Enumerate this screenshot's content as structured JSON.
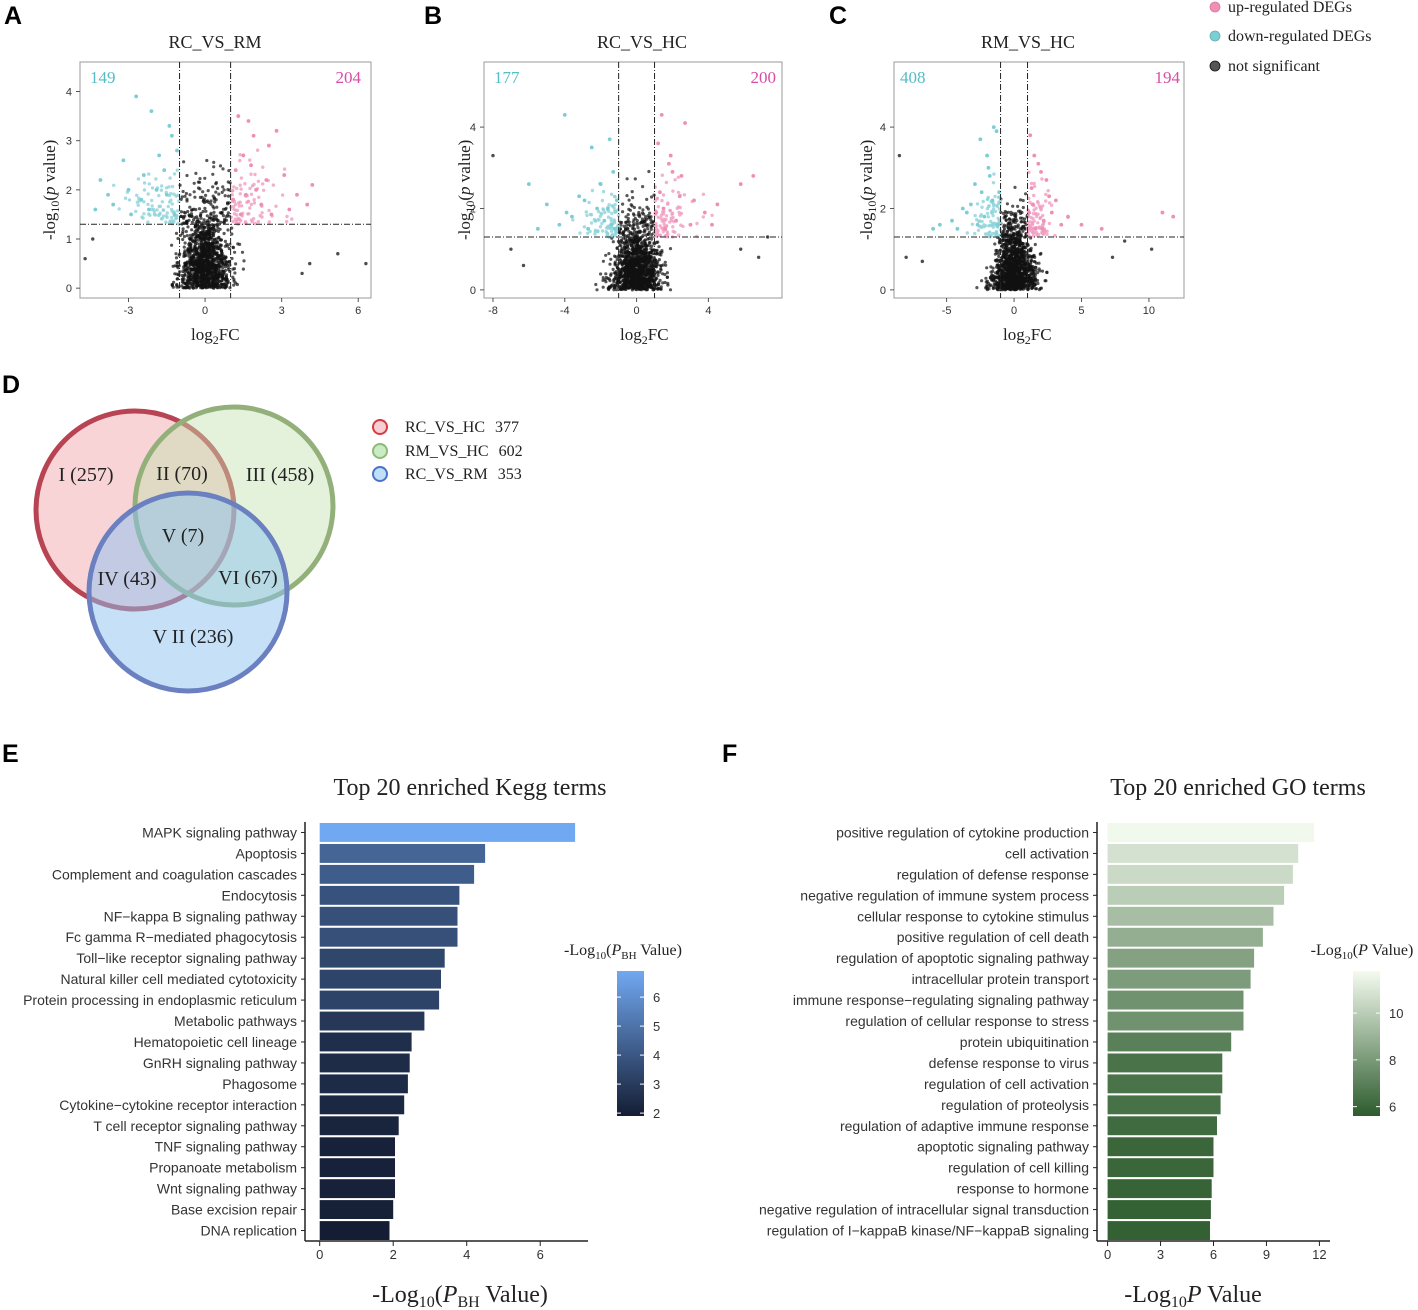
{
  "chart_data": [
    {
      "id": "A",
      "type": "scatter",
      "panel_label": "A",
      "title": "RC_VS_RM",
      "xlabel": "log2FC",
      "ylabel": "-log10(p value)",
      "xlim": [
        -4.9,
        6.5
      ],
      "ylim": [
        -0.2,
        4.6
      ],
      "xticks": [
        -3,
        0,
        3,
        6
      ],
      "yticks": [
        0,
        1,
        2,
        3,
        4
      ],
      "fc_threshold": 1,
      "p_threshold": 1.3,
      "down_count": "149",
      "up_count": "204",
      "up_points": [
        [
          1.3,
          3.5
        ],
        [
          1.9,
          3.1
        ],
        [
          2.5,
          2.9
        ],
        [
          3.1,
          2.3
        ],
        [
          1.6,
          1.9
        ],
        [
          2.2,
          1.7
        ],
        [
          3.6,
          1.9
        ],
        [
          4.2,
          2.1
        ],
        [
          1.2,
          2.4
        ],
        [
          1.5,
          2.7
        ],
        [
          2.8,
          3.2
        ],
        [
          1.4,
          1.5
        ],
        [
          2.0,
          2.0
        ],
        [
          3.3,
          1.6
        ],
        [
          1.8,
          2.5
        ],
        [
          2.4,
          2.2
        ],
        [
          1.1,
          1.8
        ],
        [
          4.0,
          1.7
        ],
        [
          1.7,
          3.4
        ],
        [
          2.6,
          1.5
        ]
      ],
      "down_points": [
        [
          -1.3,
          3.1
        ],
        [
          -1.8,
          2.7
        ],
        [
          -2.4,
          2.3
        ],
        [
          -3.0,
          2.0
        ],
        [
          -3.6,
          1.7
        ],
        [
          -1.5,
          1.9
        ],
        [
          -2.1,
          3.6
        ],
        [
          -2.7,
          3.9
        ],
        [
          -1.2,
          1.5
        ],
        [
          -4.1,
          2.2
        ],
        [
          -1.6,
          2.4
        ],
        [
          -2.2,
          1.6
        ],
        [
          -3.2,
          2.6
        ],
        [
          -1.4,
          3.3
        ],
        [
          -2.9,
          1.5
        ],
        [
          -1.9,
          2.0
        ],
        [
          -3.8,
          1.9
        ],
        [
          -1.1,
          2.8
        ],
        [
          -2.5,
          1.8
        ],
        [
          -4.3,
          1.6
        ]
      ],
      "ns_sigma": [
        0.55,
        0.85
      ],
      "ns_outliers": [
        [
          6.3,
          0.5
        ],
        [
          -4.7,
          0.6
        ],
        [
          4.1,
          0.5
        ],
        [
          -4.4,
          1.0
        ],
        [
          5.2,
          0.7
        ],
        [
          3.8,
          0.3
        ]
      ]
    },
    {
      "id": "B",
      "type": "scatter",
      "panel_label": "B",
      "title": "RC_VS_HC",
      "xlabel": "log2FC",
      "ylabel": "-log10(p value)",
      "xlim": [
        -8.5,
        8.1
      ],
      "ylim": [
        -0.2,
        5.6
      ],
      "xticks": [
        -8,
        -4,
        0,
        4
      ],
      "yticks": [
        0,
        2,
        4
      ],
      "fc_threshold": 1,
      "p_threshold": 1.3,
      "down_count": "177",
      "up_count": "200",
      "up_points": [
        [
          1.2,
          3.6
        ],
        [
          1.8,
          3.1
        ],
        [
          2.5,
          2.8
        ],
        [
          3.2,
          2.2
        ],
        [
          4.5,
          2.1
        ],
        [
          5.8,
          2.6
        ],
        [
          1.5,
          2.0
        ],
        [
          2.2,
          1.7
        ],
        [
          1.3,
          2.4
        ],
        [
          3.8,
          1.9
        ],
        [
          2.7,
          4.1
        ],
        [
          1.6,
          1.5
        ],
        [
          2.0,
          2.9
        ],
        [
          6.5,
          2.8
        ],
        [
          1.9,
          3.3
        ],
        [
          3.0,
          1.6
        ],
        [
          1.1,
          1.9
        ],
        [
          2.4,
          2.3
        ],
        [
          4.2,
          1.6
        ],
        [
          1.4,
          4.3
        ]
      ],
      "down_points": [
        [
          -1.3,
          2.9
        ],
        [
          -2.0,
          2.6
        ],
        [
          -2.9,
          2.2
        ],
        [
          -3.6,
          1.8
        ],
        [
          -4.3,
          1.6
        ],
        [
          -1.6,
          2.0
        ],
        [
          -2.5,
          3.5
        ],
        [
          -4.0,
          4.3
        ],
        [
          -1.2,
          1.5
        ],
        [
          -5.0,
          2.1
        ],
        [
          -1.8,
          1.7
        ],
        [
          -3.2,
          2.3
        ],
        [
          -1.5,
          3.7
        ],
        [
          -2.7,
          1.5
        ],
        [
          -6.0,
          2.6
        ],
        [
          -2.2,
          2.0
        ],
        [
          -1.1,
          2.2
        ],
        [
          -3.9,
          1.9
        ],
        [
          -1.4,
          1.6
        ],
        [
          -5.5,
          1.5
        ]
      ],
      "ns_sigma": [
        0.75,
        0.8
      ],
      "ns_outliers": [
        [
          -8.0,
          3.3
        ],
        [
          -7.0,
          1.0
        ],
        [
          7.3,
          1.3
        ],
        [
          5.8,
          1.0
        ],
        [
          -6.3,
          0.6
        ],
        [
          6.8,
          0.8
        ]
      ]
    },
    {
      "id": "C",
      "type": "scatter",
      "panel_label": "C",
      "title": "RM_VS_HC",
      "xlabel": "log2FC",
      "ylabel": "-log10(p value)",
      "xlim": [
        -8.9,
        12.6
      ],
      "ylim": [
        -0.2,
        5.6
      ],
      "xticks": [
        -5,
        0,
        5,
        10
      ],
      "yticks": [
        0,
        2,
        4
      ],
      "fc_threshold": 1,
      "p_threshold": 1.3,
      "down_count": "408",
      "up_count": "194",
      "up_points": [
        [
          1.2,
          3.8
        ],
        [
          1.8,
          3.1
        ],
        [
          2.4,
          2.7
        ],
        [
          3.1,
          2.2
        ],
        [
          4.0,
          1.8
        ],
        [
          1.4,
          2.1
        ],
        [
          2.2,
          1.7
        ],
        [
          1.3,
          2.5
        ],
        [
          2.8,
          1.9
        ],
        [
          5.0,
          1.6
        ],
        [
          1.6,
          1.5
        ],
        [
          2.0,
          2.9
        ],
        [
          1.1,
          1.9
        ],
        [
          2.6,
          2.3
        ],
        [
          3.5,
          1.6
        ],
        [
          6.5,
          1.5
        ],
        [
          11.0,
          1.9
        ],
        [
          11.8,
          1.8
        ],
        [
          1.5,
          3.3
        ],
        [
          2.1,
          1.5
        ]
      ],
      "down_points": [
        [
          -1.3,
          3.9
        ],
        [
          -2.0,
          3.3
        ],
        [
          -2.9,
          2.6
        ],
        [
          -3.8,
          2.0
        ],
        [
          -4.6,
          1.7
        ],
        [
          -1.6,
          2.2
        ],
        [
          -2.5,
          3.7
        ],
        [
          -1.2,
          1.6
        ],
        [
          -3.2,
          2.1
        ],
        [
          -1.5,
          4.0
        ],
        [
          -2.2,
          1.8
        ],
        [
          -4.2,
          1.5
        ],
        [
          -1.8,
          2.8
        ],
        [
          -2.7,
          1.6
        ],
        [
          -1.1,
          2.4
        ],
        [
          -3.5,
          1.9
        ],
        [
          -5.5,
          1.6
        ],
        [
          -1.9,
          3.0
        ],
        [
          -2.4,
          2.4
        ],
        [
          -6.0,
          1.5
        ]
      ],
      "ns_sigma": [
        0.9,
        0.75
      ],
      "ns_outliers": [
        [
          -8.5,
          3.3
        ],
        [
          -8.0,
          0.8
        ],
        [
          8.2,
          1.2
        ],
        [
          10.2,
          1.0
        ],
        [
          -6.8,
          0.7
        ],
        [
          7.3,
          0.8
        ]
      ]
    },
    {
      "id": "E",
      "type": "bar",
      "orientation": "horizontal",
      "panel_label": "E",
      "title": "Top 20 enriched Kegg terms",
      "xlabel": "-Log10(PBH Value)",
      "xlim": [
        -0.4,
        7.3
      ],
      "xticks": [
        0,
        2,
        4,
        6
      ],
      "colorbar_title": "-Log10(PBH Value)",
      "colorbar_range": [
        1.9,
        6.9
      ],
      "colorbar_ticks": [
        2,
        3,
        4,
        5,
        6
      ],
      "colors": {
        "low": "#141d33",
        "high": "#71a8f2"
      },
      "categories": [
        "MAPK signaling pathway",
        "Apoptosis",
        "Complement and coagulation cascades",
        "Endocytosis",
        "NF−kappa B signaling pathway",
        "Fc gamma R−mediated phagocytosis",
        "Toll−like receptor signaling pathway",
        "Natural killer cell mediated cytotoxicity",
        "Protein processing in endoplasmic reticulum",
        "Metabolic pathways",
        "Hematopoietic cell lineage",
        "GnRH signaling pathway",
        "Phagosome",
        "Cytokine−cytokine receptor interaction",
        "T cell receptor signaling pathway",
        "TNF signaling pathway",
        "Propanoate metabolism",
        "Wnt signaling pathway",
        "Base excision repair",
        "DNA replication"
      ],
      "values": [
        6.95,
        4.5,
        4.2,
        3.8,
        3.75,
        3.75,
        3.4,
        3.3,
        3.25,
        2.85,
        2.5,
        2.45,
        2.4,
        2.3,
        2.15,
        2.05,
        2.05,
        2.05,
        2.0,
        1.9
      ]
    },
    {
      "id": "F",
      "type": "bar",
      "orientation": "horizontal",
      "panel_label": "F",
      "title": "Top 20 enriched GO terms",
      "xlabel": "-Log10P Value",
      "xlim": [
        -0.6,
        12.6
      ],
      "xticks": [
        0,
        3,
        6,
        9,
        12
      ],
      "colorbar_title": "-Log10(P Value)",
      "colorbar_range": [
        5.6,
        11.8
      ],
      "colorbar_ticks": [
        6,
        8,
        10
      ],
      "colors": {
        "low": "#2d5c2d",
        "high": "#f4fbef"
      },
      "categories": [
        "positive regulation of cytokine production",
        "cell activation",
        "regulation of defense response",
        "negative regulation of immune system process",
        "cellular response to cytokine stimulus",
        "positive regulation of cell death",
        "regulation of apoptotic signaling pathway",
        "intracellular protein transport",
        "immune response−regulating signaling pathway",
        "regulation of cellular response to stress",
        "protein ubiquitination",
        "defense response to virus",
        "regulation of cell activation",
        "regulation of proteolysis",
        "regulation of adaptive immune response",
        "apoptotic signaling pathway",
        "regulation of cell killing",
        "response to hormone",
        "negative regulation of intracellular signal transduction",
        "regulation of I−kappaB kinase/NF−kappaB signaling"
      ],
      "values": [
        11.7,
        10.8,
        10.5,
        10.0,
        9.4,
        8.8,
        8.3,
        8.1,
        7.7,
        7.7,
        7.0,
        6.5,
        6.5,
        6.4,
        6.2,
        6.0,
        6.0,
        5.9,
        5.85,
        5.8
      ]
    }
  ],
  "volcano_legend": {
    "items": [
      {
        "label": "up-regulated DEGs",
        "color": "#f08fb6"
      },
      {
        "label": "down-regulated DEGs",
        "color": "#7fcdd4"
      },
      {
        "label": "not significant",
        "color": "#222222"
      }
    ]
  },
  "colors": {
    "up": "#e8639e",
    "down": "#5fbfc9",
    "up_count": "#d84ca8",
    "down_count": "#55bdc4",
    "ns": "#111111"
  },
  "venn": {
    "panel_label": "D",
    "sets": [
      {
        "label": "RC_VS_HC",
        "count": "377",
        "color": "#b84352",
        "fill": "#f4b8bc"
      },
      {
        "label": "RM_VS_HC",
        "count": "602",
        "color": "#94b07a",
        "fill": "#cfe8c0"
      },
      {
        "label": "RC_VS_RM",
        "count": "353",
        "color": "#6b80c0",
        "fill": "#a8cef2"
      }
    ],
    "regions": [
      {
        "label": "I (257)"
      },
      {
        "label": "II (70)"
      },
      {
        "label": "III (458)"
      },
      {
        "label": "IV (43)"
      },
      {
        "label": "V (7)"
      },
      {
        "label": "VI (67)"
      },
      {
        "label": "V II (236)"
      }
    ]
  }
}
